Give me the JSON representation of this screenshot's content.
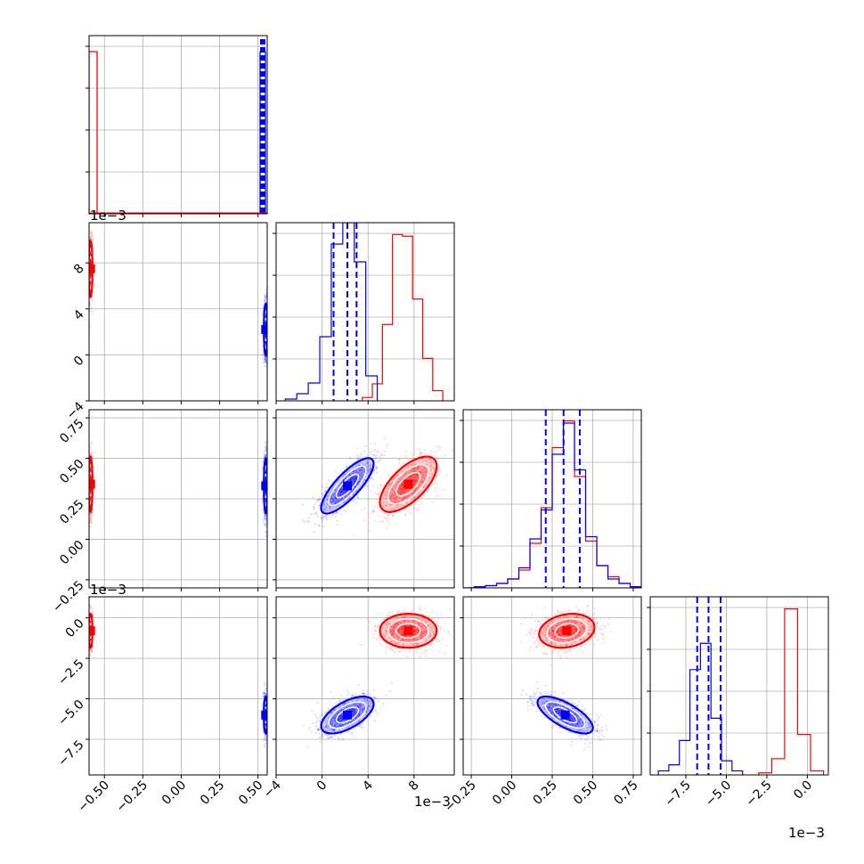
{
  "figure": {
    "colors": {
      "red": "#ff0000",
      "blue": "#0000ff",
      "grid": "#b0b0b0",
      "axis": "#000000"
    }
  },
  "chart_data": {
    "type": "corner",
    "exponent_labels": {
      "row1_y": "1e−3",
      "row3_y": "1e−3",
      "col1_x": "1e−3",
      "col3_x": "1e−3"
    },
    "parameters": [
      {
        "index": 0,
        "axis_min": -0.6,
        "axis_max": 0.56,
        "ticks": [
          -0.5,
          -0.25,
          0.0,
          0.25,
          0.5
        ],
        "tick_labels": [
          "−0.50",
          "−0.25",
          "0.00",
          "0.25",
          "0.50"
        ]
      },
      {
        "index": 1,
        "axis_min": -4,
        "axis_max": 11.5,
        "ticks": [
          -4,
          0,
          4,
          8
        ],
        "tick_labels": [
          "−4",
          "0",
          "4",
          "8"
        ]
      },
      {
        "index": 2,
        "axis_min": -0.3,
        "axis_max": 0.8,
        "ticks": [
          -0.25,
          0.0,
          0.25,
          0.5,
          0.75
        ],
        "tick_labels": [
          "−0.25",
          "0.00",
          "0.25",
          "0.50",
          "0.75"
        ]
      },
      {
        "index": 3,
        "axis_min": -9.7,
        "axis_max": 1.3,
        "ticks": [
          -7.5,
          -5.0,
          -2.5,
          0.0
        ],
        "tick_labels": [
          "−7.5",
          "−5.0",
          "−2.5",
          "0.0"
        ]
      }
    ],
    "series": [
      {
        "color": "red",
        "means": [
          -0.59,
          7.5,
          0.34,
          -0.8
        ],
        "stds": [
          0.002,
          1.3,
          0.09,
          0.55
        ],
        "corr_1_2": 0.65,
        "corr_2_3": 0.2,
        "hist_1": [
          0.02,
          0.1,
          0.45,
          0.98,
          0.97,
          0.6,
          0.25,
          0.06
        ],
        "hist_1_edges": [
          3.5,
          10.5
        ],
        "hist_3": [
          0.01,
          0.08,
          0.82,
          0.2,
          0.02
        ],
        "hist_3_edges": [
          -3.0,
          1.0
        ]
      },
      {
        "color": "blue",
        "means": [
          0.55,
          2.2,
          0.33,
          -6.0
        ],
        "stds": [
          0.002,
          1.2,
          0.09,
          0.6
        ],
        "corr_1_2": 0.8,
        "corr_2_3": -0.7,
        "quantile_lines": [
          [
            0.548,
            0.552
          ],
          [
            1.0,
            2.2,
            3.0
          ],
          [
            0.21,
            0.32,
            0.42
          ],
          [
            -6.8,
            -6.1,
            -5.35
          ]
        ],
        "hist_1": [
          0.01,
          0.04,
          0.1,
          0.36,
          0.88,
          1.0,
          0.78,
          0.14
        ],
        "hist_1_edges": [
          -3.2,
          4.8
        ],
        "hist_3": [
          0.02,
          0.05,
          0.17,
          0.52,
          0.65,
          0.28,
          0.07,
          0.02
        ],
        "hist_3_edges": [
          -9.2,
          -4.0
        ]
      }
    ],
    "hist_2": {
      "edges": [
        -0.3,
        0.8
      ],
      "red": [
        0.0,
        0.005,
        0.01,
        0.02,
        0.04,
        0.08,
        0.2,
        0.36,
        0.63,
        0.75,
        0.5,
        0.21,
        0.1,
        0.05,
        0.02,
        0.005
      ],
      "blue": [
        0.0,
        0.005,
        0.01,
        0.02,
        0.04,
        0.09,
        0.22,
        0.35,
        0.6,
        0.74,
        0.53,
        0.23,
        0.1,
        0.04,
        0.02,
        0.005
      ]
    }
  }
}
